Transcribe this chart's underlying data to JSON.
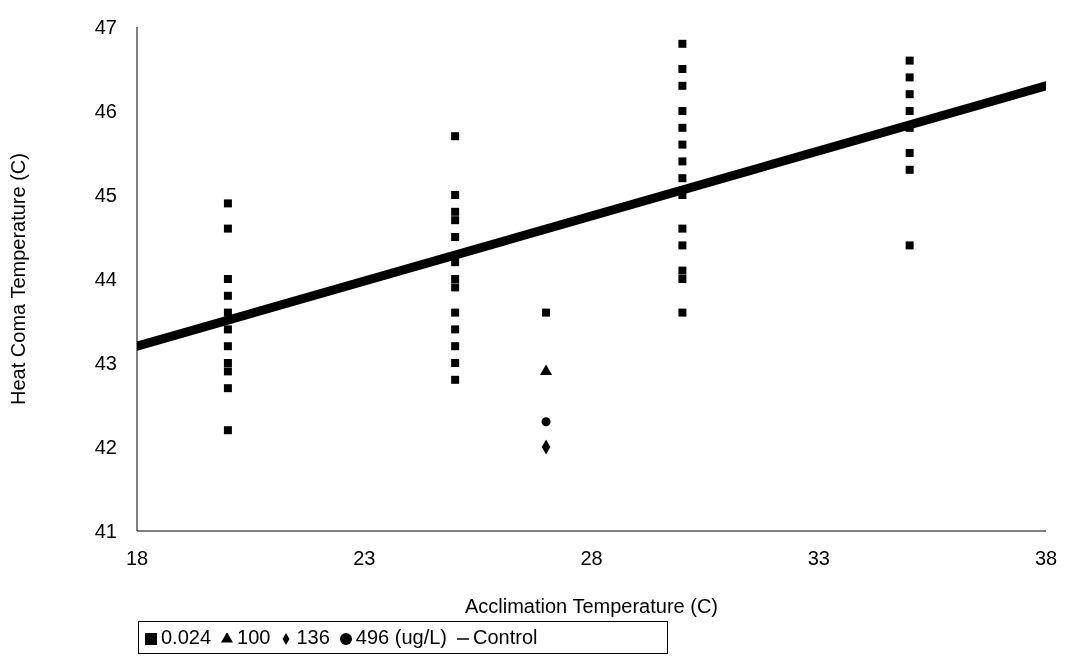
{
  "chart_data": {
    "type": "scatter",
    "xlabel": "Acclimation Temperature (C)",
    "ylabel": "Heat Coma Temperature (C)",
    "xlim": [
      18,
      38
    ],
    "xticks": [
      18,
      23,
      28,
      33,
      38
    ],
    "ylim": [
      41,
      47
    ],
    "yticks": [
      41,
      42,
      43,
      44,
      45,
      46,
      47
    ],
    "grid": false,
    "legend": "bottom left",
    "series": [
      {
        "name": "Control",
        "type": "line",
        "color": "#000000",
        "marker": "none",
        "x": [
          18,
          38
        ],
        "values": [
          43.2,
          46.3
        ]
      },
      {
        "name": "0.024",
        "color": "#000000",
        "marker": "square",
        "x": [
          20,
          20,
          20,
          20,
          20,
          20,
          20,
          20,
          20,
          20,
          20,
          25,
          25,
          25,
          25,
          25,
          25,
          25,
          25,
          25,
          25,
          25,
          25,
          25,
          27,
          30,
          30,
          30,
          30,
          30,
          30,
          30,
          30,
          30,
          30,
          30,
          30,
          30,
          30,
          35,
          35,
          35,
          35,
          35,
          35,
          35,
          35
        ],
        "values": [
          44.9,
          44.6,
          44.0,
          43.8,
          43.6,
          43.4,
          43.2,
          43.0,
          42.9,
          42.7,
          42.2,
          45.7,
          45.0,
          44.8,
          44.7,
          44.5,
          44.2,
          44.0,
          43.9,
          43.6,
          43.4,
          43.2,
          43.0,
          42.8,
          43.6,
          46.8,
          46.5,
          46.3,
          46.0,
          45.8,
          45.6,
          45.4,
          45.2,
          45.0,
          44.6,
          44.4,
          44.1,
          44.0,
          43.6,
          46.6,
          46.4,
          46.2,
          46.0,
          45.8,
          45.5,
          45.3,
          44.4
        ]
      },
      {
        "name": "100",
        "color": "#000000",
        "marker": "triangle",
        "x": [
          27
        ],
        "values": [
          42.9
        ]
      },
      {
        "name": "136",
        "color": "#000000",
        "marker": "diamond",
        "x": [
          27
        ],
        "values": [
          42.0
        ]
      },
      {
        "name": "496 (ug/L)",
        "color": "#000000",
        "marker": "circle",
        "x": [
          27
        ],
        "values": [
          42.3
        ]
      }
    ]
  }
}
